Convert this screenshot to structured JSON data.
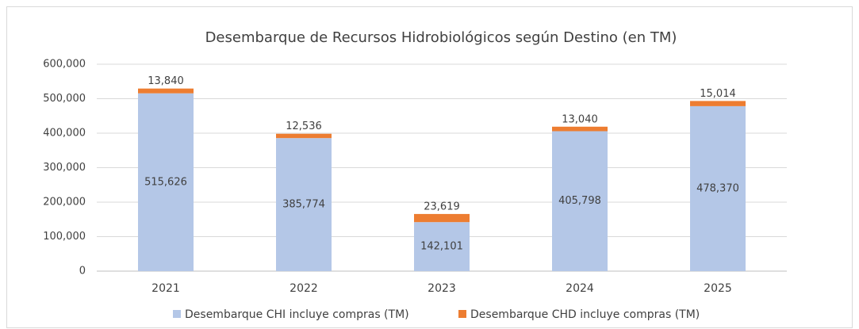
{
  "chart_data": {
    "type": "stacked_bar",
    "title": "Desembarque de Recursos Hidrobiológicos según Destino (en TM)",
    "categories": [
      "2021",
      "2022",
      "2023",
      "2024",
      "2025"
    ],
    "series": [
      {
        "name": "Desembarque CHI incluye compras (TM)",
        "color": "#b4c7e7",
        "values": [
          515626,
          385774,
          142101,
          405798,
          478370
        ],
        "value_labels": [
          "515,626",
          "385,774",
          "142,101",
          "405,798",
          "478,370"
        ]
      },
      {
        "name": "Desembarque CHD incluye compras (TM)",
        "color": "#ed7d31",
        "values": [
          13840,
          12536,
          23619,
          13040,
          15014
        ],
        "value_labels": [
          "13,840",
          "12,536",
          "23,619",
          "13,040",
          "15,014"
        ]
      }
    ],
    "ylim": [
      0,
      600000
    ],
    "yticks": [
      0,
      {
        "value": 100000,
        "label": "100,000"
      },
      {
        "value": 200000,
        "label": "200,000"
      },
      {
        "value": 300000,
        "label": "300,000"
      },
      {
        "value": 400000,
        "label": "400,000"
      },
      {
        "value": 500000,
        "label": "500,000"
      },
      {
        "value": 600000,
        "label": "600,000"
      }
    ],
    "grid": true,
    "legend": "bottom"
  }
}
